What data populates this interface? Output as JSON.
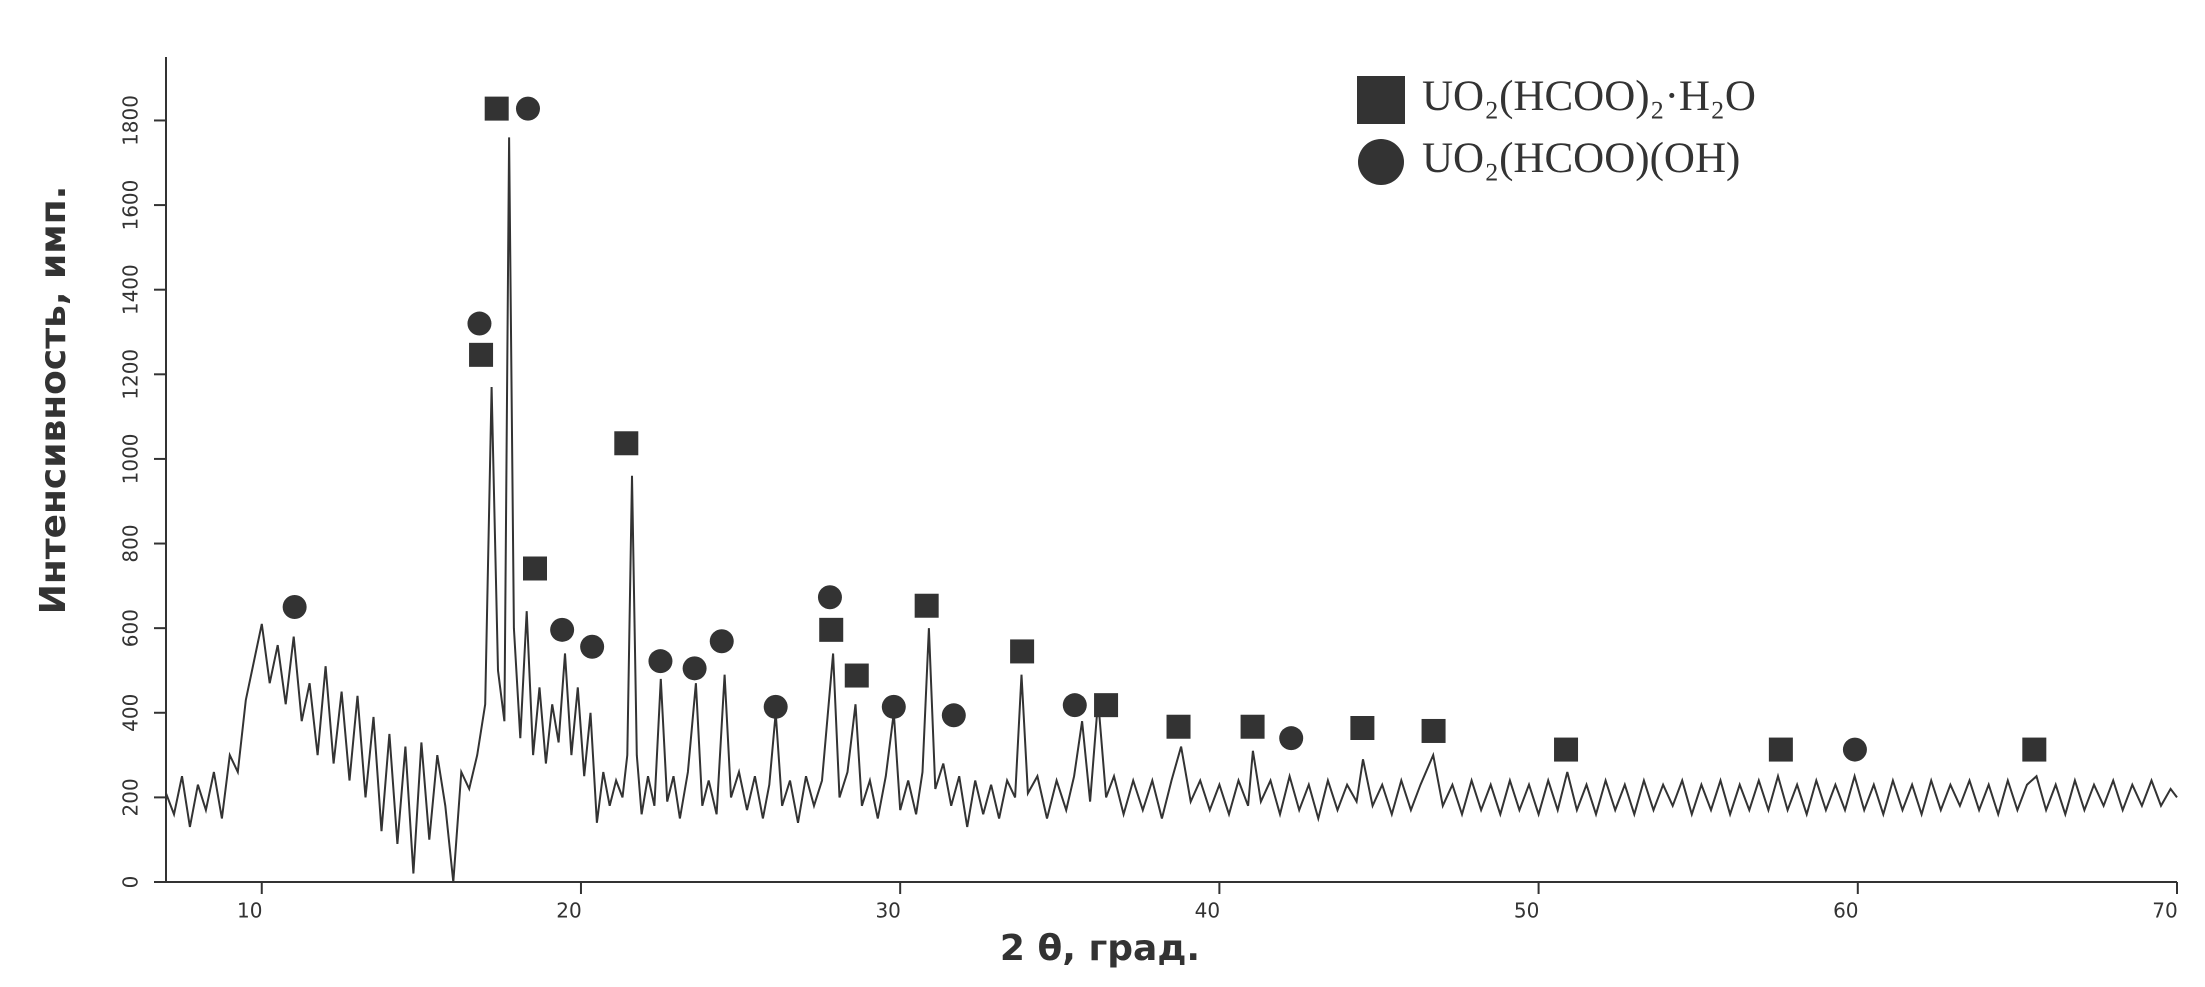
{
  "chart_data": {
    "type": "line",
    "xlabel": "2 θ, град.",
    "ylabel": "Интенсивность, имп.",
    "xlim": [
      7,
      70
    ],
    "ylim": [
      0,
      1950
    ],
    "xticks": [
      10,
      20,
      30,
      40,
      50,
      60,
      70
    ],
    "yticks": [
      0,
      200,
      400,
      600,
      800,
      1000,
      1200,
      1400,
      1600,
      1800
    ],
    "color": "#333333",
    "x": [
      7.0,
      7.25,
      7.5,
      7.75,
      8.0,
      8.25,
      8.5,
      8.75,
      9.0,
      9.25,
      9.5,
      9.75,
      10.0,
      10.25,
      10.5,
      10.75,
      11.0,
      11.25,
      11.5,
      11.75,
      12.0,
      12.25,
      12.5,
      12.75,
      13.0,
      13.25,
      13.5,
      13.75,
      14.0,
      14.25,
      14.5,
      14.75,
      15.0,
      15.25,
      15.5,
      15.75,
      16.0,
      16.25,
      16.5,
      16.75,
      17.0,
      17.2,
      17.4,
      17.6,
      17.75,
      17.9,
      18.1,
      18.3,
      18.5,
      18.7,
      18.9,
      19.1,
      19.3,
      19.5,
      19.7,
      19.9,
      20.1,
      20.3,
      20.5,
      20.7,
      20.9,
      21.1,
      21.3,
      21.45,
      21.6,
      21.75,
      21.9,
      22.1,
      22.3,
      22.5,
      22.7,
      22.9,
      23.1,
      23.35,
      23.6,
      23.8,
      24.0,
      24.25,
      24.5,
      24.7,
      24.95,
      25.2,
      25.45,
      25.7,
      25.9,
      26.1,
      26.3,
      26.55,
      26.8,
      27.05,
      27.3,
      27.55,
      27.9,
      28.1,
      28.35,
      28.6,
      28.8,
      29.05,
      29.3,
      29.55,
      29.8,
      30.0,
      30.25,
      30.5,
      30.7,
      30.9,
      31.1,
      31.35,
      31.6,
      31.85,
      32.1,
      32.35,
      32.6,
      32.85,
      33.1,
      33.35,
      33.6,
      33.8,
      34.0,
      34.3,
      34.6,
      34.9,
      35.2,
      35.45,
      35.7,
      35.95,
      36.2,
      36.45,
      36.7,
      37.0,
      37.3,
      37.6,
      37.9,
      38.2,
      38.5,
      38.8,
      39.1,
      39.4,
      39.7,
      40.0,
      40.3,
      40.6,
      40.9,
      41.05,
      41.3,
      41.6,
      41.9,
      42.2,
      42.5,
      42.8,
      43.1,
      43.4,
      43.7,
      44.0,
      44.3,
      44.5,
      44.8,
      45.1,
      45.4,
      45.7,
      46.0,
      46.3,
      46.7,
      47.0,
      47.3,
      47.6,
      47.9,
      48.2,
      48.5,
      48.8,
      49.1,
      49.4,
      49.7,
      50.0,
      50.3,
      50.6,
      50.9,
      51.2,
      51.5,
      51.8,
      52.1,
      52.4,
      52.7,
      53.0,
      53.3,
      53.6,
      53.9,
      54.2,
      54.5,
      54.8,
      55.1,
      55.4,
      55.7,
      56.0,
      56.3,
      56.6,
      56.9,
      57.2,
      57.5,
      57.8,
      58.1,
      58.4,
      58.7,
      59.0,
      59.3,
      59.6,
      59.9,
      60.2,
      60.5,
      60.8,
      61.1,
      61.4,
      61.7,
      62.0,
      62.3,
      62.6,
      62.9,
      63.2,
      63.5,
      63.8,
      64.1,
      64.4,
      64.7,
      65.0,
      65.3,
      65.6,
      65.9,
      66.2,
      66.5,
      66.8,
      67.1,
      67.4,
      67.7,
      68.0,
      68.3,
      68.6,
      68.9,
      69.2,
      69.5,
      69.8,
      70.0
    ],
    "values": [
      210,
      160,
      250,
      130,
      230,
      170,
      260,
      150,
      300,
      260,
      430,
      520,
      610,
      470,
      560,
      420,
      580,
      380,
      470,
      300,
      510,
      280,
      450,
      240,
      440,
      200,
      390,
      120,
      350,
      90,
      320,
      20,
      330,
      100,
      300,
      180,
      0,
      260,
      220,
      300,
      420,
      1170,
      500,
      380,
      1760,
      600,
      340,
      640,
      300,
      460,
      280,
      420,
      330,
      540,
      300,
      460,
      250,
      400,
      140,
      260,
      180,
      240,
      200,
      300,
      960,
      300,
      160,
      250,
      180,
      480,
      190,
      250,
      150,
      260,
      470,
      180,
      240,
      160,
      490,
      200,
      260,
      170,
      250,
      150,
      230,
      400,
      180,
      240,
      140,
      250,
      180,
      240,
      540,
      200,
      260,
      420,
      180,
      240,
      150,
      250,
      400,
      170,
      240,
      160,
      260,
      600,
      220,
      280,
      180,
      250,
      130,
      240,
      160,
      230,
      150,
      240,
      200,
      490,
      210,
      250,
      150,
      240,
      170,
      250,
      380,
      190,
      430,
      200,
      250,
      160,
      240,
      170,
      240,
      150,
      240,
      320,
      190,
      240,
      170,
      230,
      160,
      240,
      180,
      310,
      190,
      240,
      160,
      250,
      170,
      230,
      150,
      240,
      170,
      230,
      190,
      290,
      180,
      230,
      160,
      240,
      170,
      230,
      300,
      180,
      230,
      160,
      240,
      170,
      230,
      160,
      240,
      170,
      230,
      160,
      240,
      170,
      260,
      170,
      230,
      160,
      240,
      170,
      230,
      160,
      240,
      170,
      230,
      180,
      240,
      160,
      230,
      170,
      240,
      160,
      230,
      170,
      240,
      170,
      250,
      170,
      230,
      160,
      240,
      170,
      230,
      170,
      250,
      170,
      230,
      160,
      240,
      170,
      230,
      160,
      240,
      170,
      230,
      180,
      240,
      170,
      230,
      160,
      240,
      170,
      230,
      250,
      170,
      230,
      160,
      240,
      170,
      230,
      180,
      240,
      170,
      230,
      180,
      240,
      180,
      220,
      200
    ],
    "markers": [
      {
        "name": "UO₂(HCOO)₂·H₂O",
        "shape": "square",
        "color": "#333333",
        "x": [
          17.36,
          16.87,
          18.56,
          21.42,
          27.84,
          28.64,
          30.83,
          33.82,
          36.45,
          38.72,
          41.04,
          44.48,
          46.71,
          50.86,
          57.59,
          65.53
        ],
        "values": [
          1828,
          1246,
          741,
          1037,
          596,
          488,
          653,
          545,
          418,
          367,
          367,
          364,
          357,
          313,
          313,
          313
        ]
      },
      {
        "name": "UO₂(HCOO)(OH)",
        "shape": "circle",
        "color": "#333333",
        "x": [
          11.03,
          16.82,
          18.34,
          19.41,
          20.35,
          22.49,
          23.56,
          24.41,
          26.1,
          27.8,
          29.8,
          31.68,
          35.47,
          42.25,
          59.91
        ],
        "values": [
          650,
          1320,
          1828,
          596,
          556,
          522,
          505,
          569,
          414,
          673,
          414,
          394,
          418,
          340,
          313
        ]
      }
    ]
  }
}
